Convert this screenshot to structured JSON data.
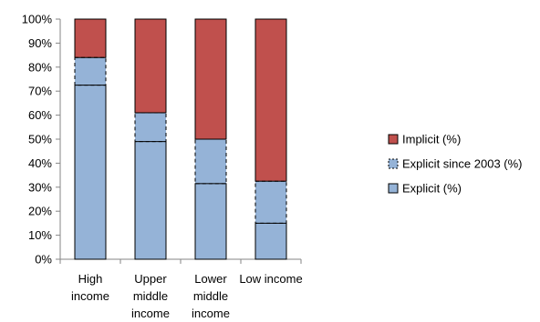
{
  "chart_data": {
    "type": "bar",
    "stacked": true,
    "categories": [
      [
        "High",
        "income"
      ],
      [
        "Upper",
        "middle",
        "income"
      ],
      [
        "Lower",
        "middle",
        "income"
      ],
      [
        "Low income"
      ]
    ],
    "series": [
      {
        "name": "Explicit (%)",
        "values": [
          72.5,
          49,
          31.5,
          15
        ],
        "color": "#95b3d7",
        "border": "solid"
      },
      {
        "name": "Explicit since 2003 (%)",
        "values": [
          11.5,
          12,
          18.5,
          17.5
        ],
        "color": "#95b3d7",
        "border": "dashed"
      },
      {
        "name": "Implicit (%)",
        "values": [
          16,
          39,
          50,
          67.5
        ],
        "color": "#c0504d",
        "border": "solid"
      }
    ],
    "ylim": [
      0,
      100
    ],
    "yticks": [
      "0%",
      "10%",
      "20%",
      "30%",
      "40%",
      "50%",
      "60%",
      "70%",
      "80%",
      "90%",
      "100%"
    ],
    "legend_order": [
      "Implicit (%)",
      "Explicit since 2003 (%)",
      "Explicit (%)"
    ],
    "legend_position": "right",
    "grid": false,
    "title": "",
    "xlabel": "",
    "ylabel": ""
  }
}
